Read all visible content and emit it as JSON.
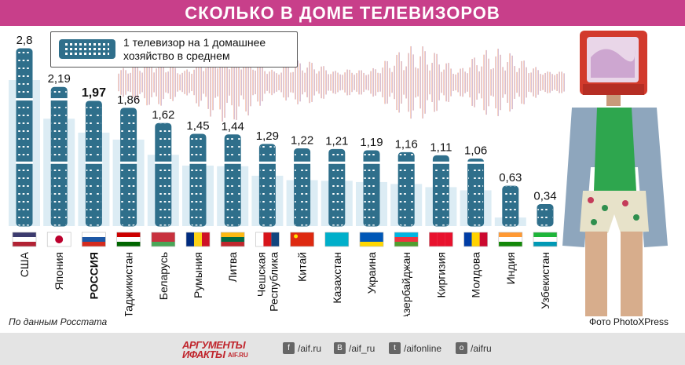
{
  "title": "СКОЛЬКО В ДОМЕ ТЕЛЕВИЗОРОВ",
  "legend": {
    "text": "1 телевизор на 1 домашнее хозяйство в среднем"
  },
  "colors": {
    "title_bg": "#c83f8a",
    "remote": "#2f6f8b",
    "bar_bg": "#dcecf4",
    "footer_bg": "#e4e4e4",
    "logo": "#c0252c"
  },
  "chart_data": {
    "type": "bar",
    "unit_note": "телевизоров на 1 домашнее хозяйство",
    "categories": [
      "США",
      "Япония",
      "РОССИЯ",
      "Таджикистан",
      "Беларусь",
      "Румыния",
      "Литва",
      "Чешская Республика",
      "Китай",
      "Казахстан",
      "Украина",
      "Азербайджан",
      "Киргизия",
      "Молдова",
      "Индия",
      "Узбекистан"
    ],
    "values": [
      2.8,
      2.19,
      1.97,
      1.86,
      1.62,
      1.45,
      1.44,
      1.29,
      1.22,
      1.21,
      1.19,
      1.16,
      1.11,
      1.06,
      0.63,
      0.34
    ],
    "value_labels": [
      "2,8",
      "2,19",
      "1,97",
      "1,86",
      "1,62",
      "1,45",
      "1,44",
      "1,29",
      "1,22",
      "1,21",
      "1,19",
      "1,16",
      "1,11",
      "1,06",
      "0,63",
      "0,34"
    ],
    "highlight": "РОССИЯ",
    "ylim": [
      0,
      2.8
    ]
  },
  "source": "По данным Росстата",
  "photo_credit": "Фото PhotoXPress",
  "footer": {
    "logo_line1": "АРГУМЕНТЫ",
    "logo_line2": "ИФАКТЫ",
    "logo_site": "AIF.RU",
    "social": [
      {
        "icon": "facebook-icon",
        "glyph": "f",
        "text": "/aif.ru"
      },
      {
        "icon": "vk-icon",
        "glyph": "В",
        "text": "/aif_ru"
      },
      {
        "icon": "twitter-icon",
        "glyph": "t",
        "text": "/aifonline"
      },
      {
        "icon": "ok-icon",
        "glyph": "о",
        "text": "/aifru"
      }
    ]
  }
}
